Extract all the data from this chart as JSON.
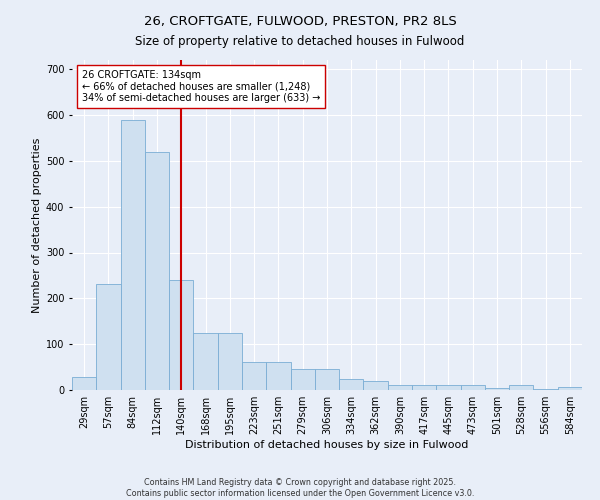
{
  "title": "26, CROFTGATE, FULWOOD, PRESTON, PR2 8LS",
  "subtitle": "Size of property relative to detached houses in Fulwood",
  "xlabel": "Distribution of detached houses by size in Fulwood",
  "ylabel": "Number of detached properties",
  "categories": [
    "29sqm",
    "57sqm",
    "84sqm",
    "112sqm",
    "140sqm",
    "168sqm",
    "195sqm",
    "223sqm",
    "251sqm",
    "279sqm",
    "306sqm",
    "334sqm",
    "362sqm",
    "390sqm",
    "417sqm",
    "445sqm",
    "473sqm",
    "501sqm",
    "528sqm",
    "556sqm",
    "584sqm"
  ],
  "values": [
    28,
    232,
    590,
    520,
    240,
    125,
    125,
    62,
    62,
    45,
    45,
    25,
    20,
    12,
    12,
    10,
    10,
    5,
    10,
    3,
    7
  ],
  "bar_color": "#cfe0f0",
  "bar_edge_color": "#7aadd4",
  "vline_x": 4,
  "vline_color": "#cc0000",
  "annotation_title": "26 CROFTGATE: 134sqm",
  "annotation_line1": "← 66% of detached houses are smaller (1,248)",
  "annotation_line2": "34% of semi-detached houses are larger (633) →",
  "annotation_box_color": "white",
  "annotation_box_edge": "#cc0000",
  "ylim": [
    0,
    720
  ],
  "yticks": [
    0,
    100,
    200,
    300,
    400,
    500,
    600,
    700
  ],
  "background_color": "#e8eef8",
  "plot_background": "#e8eef8",
  "footer1": "Contains HM Land Registry data © Crown copyright and database right 2025.",
  "footer2": "Contains public sector information licensed under the Open Government Licence v3.0.",
  "title_fontsize": 9.5,
  "subtitle_fontsize": 8.5,
  "tick_fontsize": 7,
  "ylabel_fontsize": 8,
  "xlabel_fontsize": 8,
  "annotation_fontsize": 7,
  "footer_fontsize": 5.8
}
